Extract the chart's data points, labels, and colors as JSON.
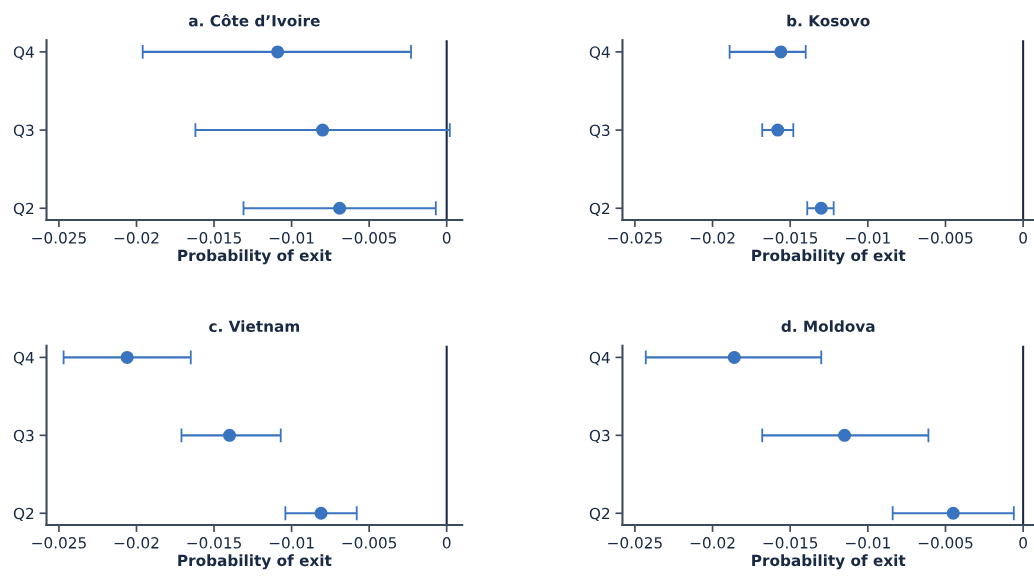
{
  "chart_data": [
    {
      "type": "scatter",
      "orientation": "horizontal",
      "title": "a. Côte d’Ivoire",
      "xlabel": "Probability of exit",
      "categories": [
        "Q4",
        "Q3",
        "Q2"
      ],
      "color": "#3a74c0",
      "marker": "circle",
      "values": [
        -0.0109,
        -0.008,
        -0.0069
      ],
      "errors": [
        [
          -0.0196,
          -0.0023
        ],
        [
          -0.0162,
          0.0002
        ],
        [
          -0.0131,
          -0.0007
        ]
      ],
      "xlim": [
        -0.0258,
        0.001
      ],
      "xticks": [
        {
          "value": -0.025,
          "label": "−0.025"
        },
        {
          "value": -0.02,
          "label": "−0.02"
        },
        {
          "value": -0.015,
          "label": "−0.015"
        },
        {
          "value": -0.01,
          "label": "−0.01"
        },
        {
          "value": -0.005,
          "label": "−0.005"
        },
        0
      ],
      "ref_lines": [
        {
          "axis": "x",
          "value": 0,
          "color": "#1a2a44"
        }
      ],
      "grid": false,
      "legend": false
    },
    {
      "type": "scatter",
      "orientation": "horizontal",
      "title": "b. Kosovo",
      "xlabel": "Probability of exit",
      "categories": [
        "Q4",
        "Q3",
        "Q2"
      ],
      "color": "#3a74c0",
      "marker": "circle",
      "values": [
        -0.0156,
        -0.0158,
        -0.013
      ],
      "errors": [
        [
          -0.0189,
          -0.014
        ],
        [
          -0.0168,
          -0.0148
        ],
        [
          -0.0139,
          -0.0122
        ]
      ],
      "xlim": [
        -0.0258,
        0.0007
      ],
      "xticks": [
        {
          "value": -0.025,
          "label": "−0.025"
        },
        {
          "value": -0.02,
          "label": "−0.02"
        },
        {
          "value": -0.015,
          "label": "−0.015"
        },
        {
          "value": -0.01,
          "label": "−0.01"
        },
        {
          "value": -0.005,
          "label": "−0.005"
        },
        0
      ],
      "ref_lines": [
        {
          "axis": "x",
          "value": 0,
          "color": "#1a2a44"
        }
      ],
      "grid": false,
      "legend": false
    },
    {
      "type": "scatter",
      "orientation": "horizontal",
      "title": "c. Vietnam",
      "xlabel": "Probability of exit",
      "categories": [
        "Q4",
        "Q3",
        "Q2"
      ],
      "color": "#3a74c0",
      "marker": "circle",
      "values": [
        -0.0206,
        -0.014,
        -0.0081
      ],
      "errors": [
        [
          -0.0247,
          -0.0165
        ],
        [
          -0.0171,
          -0.0107
        ],
        [
          -0.0104,
          -0.0058
        ]
      ],
      "xlim": [
        -0.0258,
        0.001
      ],
      "xticks": [
        {
          "value": -0.025,
          "label": "−0.025"
        },
        {
          "value": -0.02,
          "label": "−0.02"
        },
        {
          "value": -0.015,
          "label": "−0.015"
        },
        {
          "value": -0.01,
          "label": "−0.01"
        },
        {
          "value": -0.005,
          "label": "−0.005"
        },
        0
      ],
      "ref_lines": [
        {
          "axis": "x",
          "value": 0,
          "color": "#1a2a44"
        }
      ],
      "grid": false,
      "legend": false
    },
    {
      "type": "scatter",
      "orientation": "horizontal",
      "title": "d. Moldova",
      "xlabel": "Probability of exit",
      "categories": [
        "Q4",
        "Q3",
        "Q2"
      ],
      "color": "#3a74c0",
      "marker": "circle",
      "values": [
        -0.0186,
        -0.0115,
        -0.0045
      ],
      "errors": [
        [
          -0.0243,
          -0.013
        ],
        [
          -0.0168,
          -0.0061
        ],
        [
          -0.0084,
          -0.0006
        ]
      ],
      "xlim": [
        -0.0258,
        0.0007
      ],
      "xticks": [
        {
          "value": -0.025,
          "label": "−0.025"
        },
        {
          "value": -0.02,
          "label": "−0.02"
        },
        {
          "value": -0.015,
          "label": "−0.015"
        },
        {
          "value": -0.01,
          "label": "−0.01"
        },
        {
          "value": -0.005,
          "label": "−0.005"
        },
        0
      ],
      "ref_lines": [
        {
          "axis": "x",
          "value": 0,
          "color": "#1a2a44"
        }
      ],
      "grid": false,
      "legend": false
    }
  ]
}
